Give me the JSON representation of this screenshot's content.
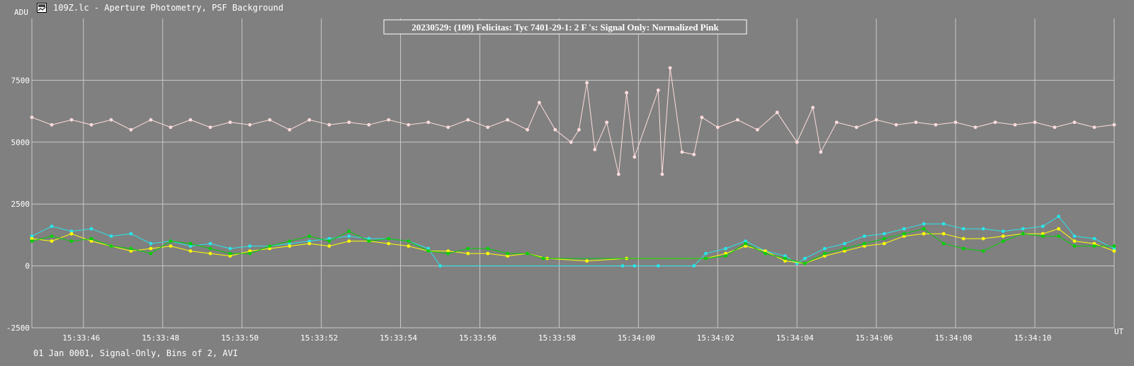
{
  "window": {
    "title": "109Z.lc - Aperture Photometry, PSF Background",
    "icon": "chart-app-icon"
  },
  "status": "01 Jan 0001, Signal-Only, Bins of 2, AVI",
  "colors": {
    "background": "#808080",
    "grid": "#c8c8c8",
    "text": "#ffffff",
    "pink": "#ffdcdc",
    "cyan": "#28e6ea",
    "yellow": "#ffff00",
    "green": "#00d000"
  },
  "chart_data": {
    "type": "line",
    "title": "20230529: (109) Felicitas: Tyc 7401-29-1: 2 F 's: Signal Only: Normalized Pink",
    "xlabel": "UT",
    "ylabel": "ADU",
    "xlim": [
      "15:33:44.7",
      "15:34:12.0"
    ],
    "ylim": [
      -2500,
      10000
    ],
    "grid": true,
    "x_ticks": [
      "15:33:46",
      "15:33:48",
      "15:33:50",
      "15:33:52",
      "15:33:54",
      "15:33:56",
      "15:33:58",
      "15:34:00",
      "15:34:02",
      "15:34:04",
      "15:34:06",
      "15:34:08",
      "15:34:10"
    ],
    "y_ticks": [
      7500,
      5000,
      2500,
      0,
      -2500
    ],
    "series": [
      {
        "color": "#ffdcdc",
        "points": [
          [
            "15:33:44.7",
            6000
          ],
          [
            "15:33:45.2",
            5700
          ],
          [
            "15:33:45.7",
            5900
          ],
          [
            "15:33:46.2",
            5700
          ],
          [
            "15:33:46.7",
            5900
          ],
          [
            "15:33:47.2",
            5500
          ],
          [
            "15:33:47.7",
            5900
          ],
          [
            "15:33:48.2",
            5600
          ],
          [
            "15:33:48.7",
            5900
          ],
          [
            "15:33:49.2",
            5600
          ],
          [
            "15:33:49.7",
            5800
          ],
          [
            "15:33:50.2",
            5700
          ],
          [
            "15:33:50.7",
            5900
          ],
          [
            "15:33:51.2",
            5500
          ],
          [
            "15:33:51.7",
            5900
          ],
          [
            "15:33:52.2",
            5700
          ],
          [
            "15:33:52.7",
            5800
          ],
          [
            "15:33:53.2",
            5700
          ],
          [
            "15:33:53.7",
            5900
          ],
          [
            "15:33:54.2",
            5700
          ],
          [
            "15:33:54.7",
            5800
          ],
          [
            "15:33:55.2",
            5600
          ],
          [
            "15:33:55.7",
            5900
          ],
          [
            "15:33:56.2",
            5600
          ],
          [
            "15:33:56.7",
            5900
          ],
          [
            "15:33:57.2",
            5500
          ],
          [
            "15:33:57.5",
            6600
          ],
          [
            "15:33:57.9",
            5500
          ],
          [
            "15:33:58.3",
            5000
          ],
          [
            "15:33:58.5",
            5500
          ],
          [
            "15:33:58.7",
            7400
          ],
          [
            "15:33:58.9",
            4700
          ],
          [
            "15:33:59.2",
            5800
          ],
          [
            "15:33:59.5",
            3700
          ],
          [
            "15:33:59.7",
            7000
          ],
          [
            "15:33:59.9",
            4400
          ],
          [
            "15:34:00.5",
            7100
          ],
          [
            "15:34:00.6",
            3700
          ],
          [
            "15:34:00.8",
            8000
          ],
          [
            "15:34:01.1",
            4600
          ],
          [
            "15:34:01.4",
            4500
          ],
          [
            "15:34:01.6",
            6000
          ],
          [
            "15:34:02.0",
            5600
          ],
          [
            "15:34:02.5",
            5900
          ],
          [
            "15:34:03.0",
            5500
          ],
          [
            "15:34:03.5",
            6200
          ],
          [
            "15:34:04.0",
            5000
          ],
          [
            "15:34:04.4",
            6400
          ],
          [
            "15:34:04.6",
            4600
          ],
          [
            "15:34:05.0",
            5800
          ],
          [
            "15:34:05.5",
            5600
          ],
          [
            "15:34:06.0",
            5900
          ],
          [
            "15:34:06.5",
            5700
          ],
          [
            "15:34:07.0",
            5800
          ],
          [
            "15:34:07.5",
            5700
          ],
          [
            "15:34:08.0",
            5800
          ],
          [
            "15:34:08.5",
            5600
          ],
          [
            "15:34:09.0",
            5800
          ],
          [
            "15:34:09.5",
            5700
          ],
          [
            "15:34:10.0",
            5800
          ],
          [
            "15:34:10.5",
            5600
          ],
          [
            "15:34:11.0",
            5800
          ],
          [
            "15:34:11.5",
            5600
          ],
          [
            "15:34:12.0",
            5700
          ]
        ]
      },
      {
        "color": "#28e6ea",
        "points": [
          [
            "15:33:44.7",
            1200
          ],
          [
            "15:33:45.2",
            1600
          ],
          [
            "15:33:45.7",
            1400
          ],
          [
            "15:33:46.2",
            1500
          ],
          [
            "15:33:46.7",
            1200
          ],
          [
            "15:33:47.2",
            1300
          ],
          [
            "15:33:47.7",
            900
          ],
          [
            "15:33:48.2",
            1000
          ],
          [
            "15:33:48.7",
            800
          ],
          [
            "15:33:49.2",
            900
          ],
          [
            "15:33:49.7",
            700
          ],
          [
            "15:33:50.2",
            800
          ],
          [
            "15:33:50.7",
            800
          ],
          [
            "15:33:51.2",
            900
          ],
          [
            "15:33:51.7",
            1000
          ],
          [
            "15:33:52.2",
            1100
          ],
          [
            "15:33:52.7",
            1200
          ],
          [
            "15:33:53.2",
            1100
          ],
          [
            "15:33:53.7",
            1100
          ],
          [
            "15:33:54.2",
            1000
          ],
          [
            "15:33:54.7",
            700
          ],
          [
            "15:33:55.0",
            0
          ],
          [
            "15:33:59.6",
            0
          ],
          [
            "15:33:59.9",
            0
          ],
          [
            "15:34:00.5",
            0
          ],
          [
            "15:34:01.4",
            0
          ],
          [
            "15:34:01.7",
            500
          ],
          [
            "15:34:02.2",
            700
          ],
          [
            "15:34:02.7",
            1000
          ],
          [
            "15:34:03.2",
            600
          ],
          [
            "15:34:03.7",
            400
          ],
          [
            "15:34:04.0",
            100
          ],
          [
            "15:34:04.2",
            300
          ],
          [
            "15:34:04.7",
            700
          ],
          [
            "15:34:05.2",
            900
          ],
          [
            "15:34:05.7",
            1200
          ],
          [
            "15:34:06.2",
            1300
          ],
          [
            "15:34:06.7",
            1500
          ],
          [
            "15:34:07.2",
            1700
          ],
          [
            "15:34:07.7",
            1700
          ],
          [
            "15:34:08.2",
            1500
          ],
          [
            "15:34:08.7",
            1500
          ],
          [
            "15:34:09.2",
            1400
          ],
          [
            "15:34:09.7",
            1500
          ],
          [
            "15:34:10.2",
            1600
          ],
          [
            "15:34:10.6",
            2000
          ],
          [
            "15:34:11.0",
            1200
          ],
          [
            "15:34:11.5",
            1100
          ],
          [
            "15:34:12.0",
            700
          ]
        ]
      },
      {
        "color": "#ffff00",
        "points": [
          [
            "15:33:44.7",
            1100
          ],
          [
            "15:33:45.2",
            1000
          ],
          [
            "15:33:45.7",
            1300
          ],
          [
            "15:33:46.2",
            1000
          ],
          [
            "15:33:46.7",
            800
          ],
          [
            "15:33:47.2",
            600
          ],
          [
            "15:33:47.7",
            700
          ],
          [
            "15:33:48.2",
            800
          ],
          [
            "15:33:48.7",
            600
          ],
          [
            "15:33:49.2",
            500
          ],
          [
            "15:33:49.7",
            400
          ],
          [
            "15:33:50.2",
            600
          ],
          [
            "15:33:50.7",
            700
          ],
          [
            "15:33:51.2",
            800
          ],
          [
            "15:33:51.7",
            900
          ],
          [
            "15:33:52.2",
            800
          ],
          [
            "15:33:52.7",
            1000
          ],
          [
            "15:33:53.2",
            1000
          ],
          [
            "15:33:53.7",
            900
          ],
          [
            "15:33:54.2",
            800
          ],
          [
            "15:33:54.7",
            600
          ],
          [
            "15:33:55.2",
            600
          ],
          [
            "15:33:55.7",
            500
          ],
          [
            "15:33:56.2",
            500
          ],
          [
            "15:33:56.7",
            400
          ],
          [
            "15:33:57.2",
            500
          ],
          [
            "15:33:57.7",
            300
          ],
          [
            "15:33:58.7",
            200
          ],
          [
            "15:33:59.7",
            300
          ],
          [
            "15:34:01.7",
            300
          ],
          [
            "15:34:02.2",
            500
          ],
          [
            "15:34:02.7",
            800
          ],
          [
            "15:34:03.2",
            600
          ],
          [
            "15:34:03.7",
            200
          ],
          [
            "15:34:04.2",
            100
          ],
          [
            "15:34:04.7",
            400
          ],
          [
            "15:34:05.2",
            600
          ],
          [
            "15:34:05.7",
            800
          ],
          [
            "15:34:06.2",
            900
          ],
          [
            "15:34:06.7",
            1200
          ],
          [
            "15:34:07.2",
            1300
          ],
          [
            "15:34:07.7",
            1300
          ],
          [
            "15:34:08.2",
            1100
          ],
          [
            "15:34:08.7",
            1100
          ],
          [
            "15:34:09.2",
            1200
          ],
          [
            "15:34:09.7",
            1300
          ],
          [
            "15:34:10.2",
            1300
          ],
          [
            "15:34:10.6",
            1500
          ],
          [
            "15:34:11.0",
            1000
          ],
          [
            "15:34:11.5",
            900
          ],
          [
            "15:34:12.0",
            600
          ]
        ]
      },
      {
        "color": "#00d000",
        "points": [
          [
            "15:33:44.7",
            1000
          ],
          [
            "15:33:45.2",
            1200
          ],
          [
            "15:33:45.7",
            1000
          ],
          [
            "15:33:46.2",
            1100
          ],
          [
            "15:33:46.7",
            800
          ],
          [
            "15:33:47.2",
            700
          ],
          [
            "15:33:47.7",
            500
          ],
          [
            "15:33:48.2",
            1000
          ],
          [
            "15:33:48.7",
            900
          ],
          [
            "15:33:49.2",
            700
          ],
          [
            "15:33:49.7",
            500
          ],
          [
            "15:33:50.2",
            500
          ],
          [
            "15:33:50.7",
            800
          ],
          [
            "15:33:51.2",
            1000
          ],
          [
            "15:33:51.7",
            1200
          ],
          [
            "15:33:52.2",
            1000
          ],
          [
            "15:33:52.7",
            1400
          ],
          [
            "15:33:53.2",
            1000
          ],
          [
            "15:33:53.7",
            1100
          ],
          [
            "15:33:54.2",
            1000
          ],
          [
            "15:33:54.7",
            600
          ],
          [
            "15:33:55.2",
            500
          ],
          [
            "15:33:55.7",
            700
          ],
          [
            "15:33:56.2",
            700
          ],
          [
            "15:33:56.7",
            500
          ],
          [
            "15:33:57.2",
            500
          ],
          [
            "15:33:57.6",
            300
          ],
          [
            "15:34:01.7",
            300
          ],
          [
            "15:34:02.2",
            400
          ],
          [
            "15:34:02.7",
            900
          ],
          [
            "15:34:03.2",
            500
          ],
          [
            "15:34:03.7",
            300
          ],
          [
            "15:34:04.2",
            100
          ],
          [
            "15:34:04.7",
            500
          ],
          [
            "15:34:05.2",
            700
          ],
          [
            "15:34:05.7",
            900
          ],
          [
            "15:34:06.2",
            1100
          ],
          [
            "15:34:06.7",
            1300
          ],
          [
            "15:34:07.2",
            1500
          ],
          [
            "15:34:07.7",
            900
          ],
          [
            "15:34:08.2",
            700
          ],
          [
            "15:34:08.7",
            600
          ],
          [
            "15:34:09.2",
            1000
          ],
          [
            "15:34:09.7",
            1300
          ],
          [
            "15:34:10.2",
            1200
          ],
          [
            "15:34:10.6",
            1200
          ],
          [
            "15:34:11.0",
            800
          ],
          [
            "15:34:11.5",
            800
          ],
          [
            "15:34:12.0",
            800
          ]
        ]
      }
    ]
  }
}
